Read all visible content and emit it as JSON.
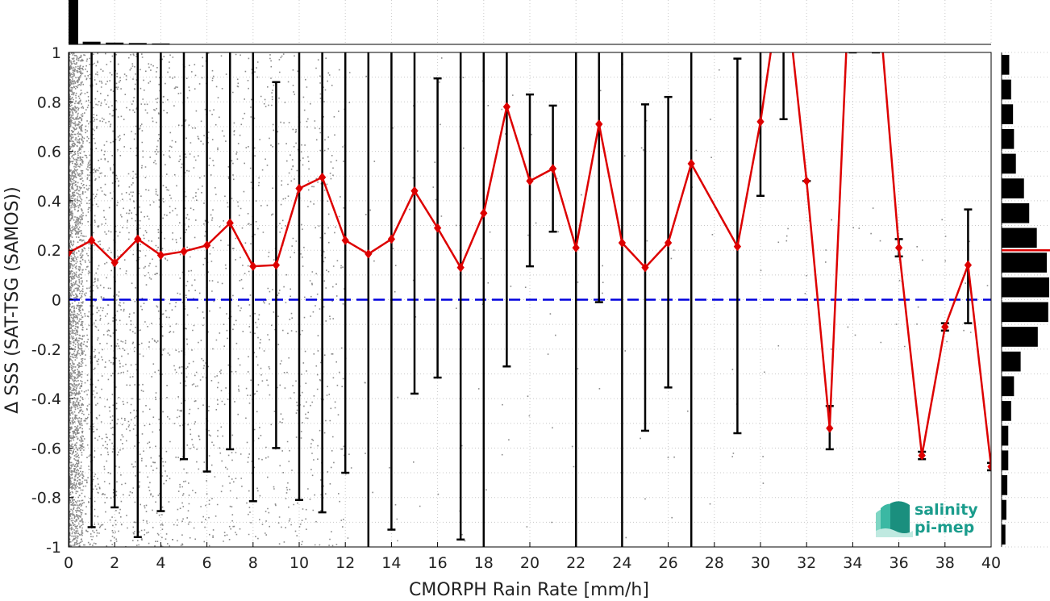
{
  "chart_data": {
    "type": "line",
    "xlabel": "CMORPH Rain Rate [mm/h]",
    "ylabel": "Δ SSS (SAT-TSG (SAMOS))",
    "xlim": [
      0,
      40
    ],
    "ylim": [
      -1,
      1
    ],
    "xticks": [
      0,
      2,
      4,
      6,
      8,
      10,
      12,
      14,
      16,
      18,
      20,
      22,
      24,
      26,
      28,
      30,
      32,
      34,
      36,
      38,
      40
    ],
    "yticks": [
      1,
      0.8,
      0.6,
      0.4,
      0.2,
      0,
      -0.2,
      -0.4,
      -0.6,
      -0.8,
      -1
    ],
    "grid": true,
    "reference_line": {
      "y": 0,
      "style": "dashed",
      "color": "#0000dd"
    },
    "series": [
      {
        "color": "#dd0000",
        "x": [
          0,
          1,
          2,
          3,
          4,
          5,
          6,
          7,
          8,
          9,
          10,
          11,
          12,
          13,
          14,
          15,
          16,
          17,
          18,
          19,
          20,
          21,
          22,
          23,
          24,
          25,
          26,
          27,
          29,
          30,
          31,
          32,
          33,
          34,
          35,
          36,
          37,
          38,
          39,
          40
        ],
        "y": [
          0.19,
          0.24,
          0.15,
          0.245,
          0.18,
          0.195,
          0.22,
          0.31,
          0.135,
          0.14,
          0.45,
          0.495,
          0.24,
          0.185,
          0.245,
          0.44,
          0.29,
          0.13,
          0.35,
          0.78,
          0.48,
          0.53,
          0.21,
          0.71,
          0.23,
          0.13,
          0.23,
          0.55,
          0.215,
          0.72,
          1.35,
          0.48,
          -0.52,
          1.6,
          1.35,
          0.21,
          -0.63,
          -0.11,
          0.14,
          -0.675
        ],
        "yerr_low": [
          -1.0,
          -0.92,
          -0.84,
          -0.96,
          -0.855,
          -0.645,
          -0.695,
          -0.605,
          -0.815,
          -0.6,
          -0.81,
          -0.86,
          -0.7,
          -1.0,
          -0.93,
          -0.38,
          -0.315,
          -0.97,
          -1.0,
          -0.27,
          0.135,
          0.275,
          -1.0,
          -0.01,
          -1.0,
          -0.53,
          -0.355,
          -1.0,
          -0.54,
          0.42,
          0.73,
          0.48,
          -0.605,
          1.0,
          1.0,
          0.175,
          -0.645,
          -0.125,
          -0.095,
          -0.69
        ],
        "yerr_high": [
          1.0,
          1.0,
          1.0,
          1.0,
          1.0,
          1.0,
          1.0,
          1.0,
          1.0,
          0.88,
          1.0,
          1.0,
          1.0,
          1.0,
          1.0,
          1.0,
          0.895,
          1.0,
          1.0,
          1.0,
          0.83,
          0.785,
          1.0,
          1.0,
          1.0,
          0.79,
          0.82,
          1.0,
          0.975,
          1.0,
          1.0,
          0.48,
          -0.43,
          1.0,
          1.0,
          0.245,
          -0.615,
          -0.095,
          0.365,
          -0.66
        ]
      }
    ],
    "top_histogram": [
      1.0,
      0.06,
      0.04,
      0.03,
      0.02
    ],
    "right_histogram": {
      "bins": [
        0.95,
        0.85,
        0.75,
        0.65,
        0.55,
        0.45,
        0.35,
        0.25,
        0.15,
        0.05,
        -0.05,
        -0.15,
        -0.25,
        -0.35,
        -0.45,
        -0.55,
        -0.65,
        -0.75,
        -0.85,
        -0.95
      ],
      "counts": [
        0.16,
        0.2,
        0.24,
        0.26,
        0.3,
        0.47,
        0.58,
        0.74,
        0.95,
        1.0,
        0.98,
        0.76,
        0.4,
        0.26,
        0.2,
        0.14,
        0.14,
        0.12,
        0.1,
        0.08
      ],
      "mean": 0.2,
      "mean_color": "#dd0000"
    }
  },
  "logo": {
    "line1": "salinity",
    "line2": "pi-mep",
    "color": "#1a9c8c"
  }
}
